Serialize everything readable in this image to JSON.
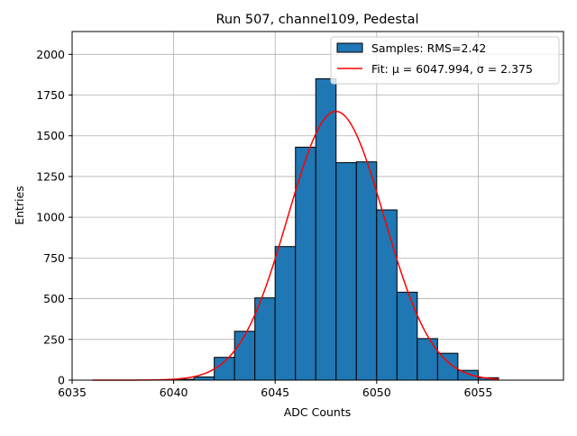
{
  "chart_data": {
    "type": "bar",
    "title": "Run 507, channel109, Pedestal",
    "xlabel": "ADC Counts",
    "ylabel": "Entries",
    "xlim": [
      6035,
      6059.2
    ],
    "ylim": [
      0,
      2140
    ],
    "xticks": [
      6035,
      6040,
      6045,
      6050,
      6055
    ],
    "yticks": [
      0,
      250,
      500,
      750,
      1000,
      1250,
      1500,
      1750,
      2000
    ],
    "grid": true,
    "legend_position": "top-right",
    "series": [
      {
        "name": "Samples: RMS=2.42",
        "kind": "histogram",
        "color": "#1f77b4",
        "edge_color": "#000000",
        "bin_edges": [
          6040,
          6041,
          6042,
          6043,
          6044,
          6045,
          6046,
          6047,
          6048,
          6049,
          6050,
          6051,
          6052,
          6053,
          6054,
          6055,
          6056
        ],
        "values": [
          5,
          20,
          140,
          300,
          505,
          820,
          1430,
          1850,
          1335,
          1340,
          1045,
          540,
          255,
          165,
          60,
          15
        ]
      },
      {
        "name": "Fit: μ = 6047.994, σ = 2.375",
        "kind": "gaussian-fit",
        "color": "#ff0000",
        "mu": 6047.994,
        "sigma": 2.375,
        "amplitude": 1650,
        "x_range": [
          6036,
          6056
        ]
      }
    ]
  }
}
